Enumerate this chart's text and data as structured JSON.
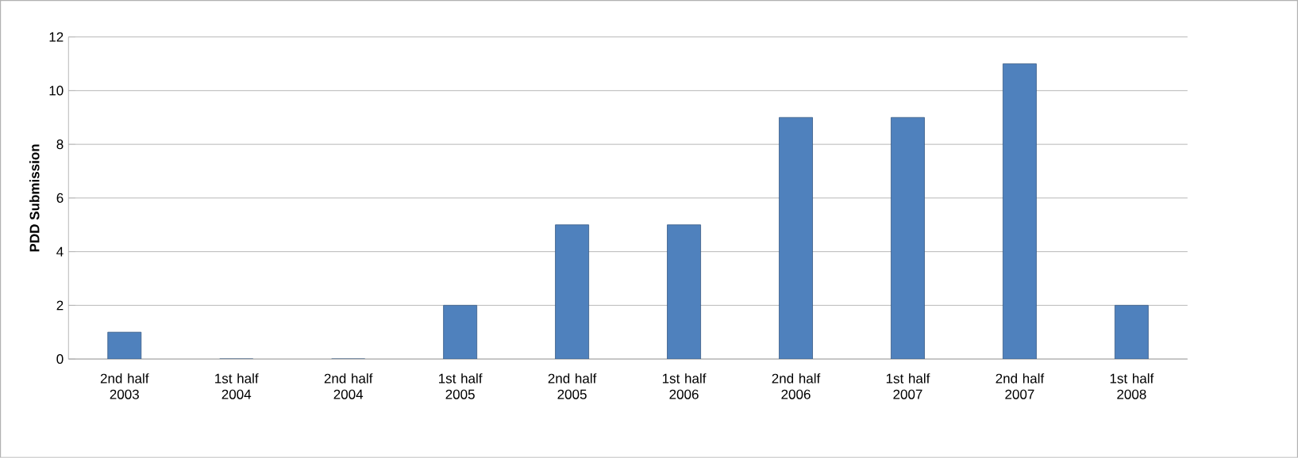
{
  "chart_data": {
    "type": "bar",
    "ylabel": "PDD Submission",
    "categories": [
      "2nd half 2003",
      "1st half 2004",
      "2nd half 2004",
      "1st half 2005",
      "2nd half 2005",
      "1st half 2006",
      "2nd half 2006",
      "1st half 2007",
      "2nd half 2007",
      "1st half 2008"
    ],
    "values": [
      1,
      0,
      0,
      2,
      5,
      5,
      9,
      9,
      11,
      2
    ],
    "color": "#4f81bd",
    "ylim": [
      0,
      12
    ],
    "yticks": [
      0,
      2,
      4,
      6,
      8,
      10,
      12
    ],
    "grid": "y"
  }
}
